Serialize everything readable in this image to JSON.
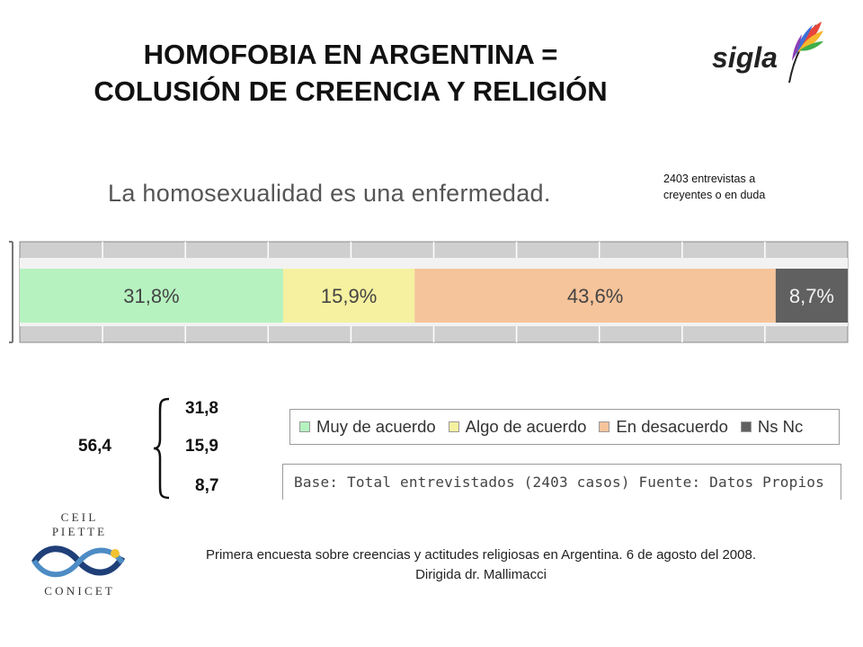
{
  "slide": {
    "title_line1": "HOMOFOBIA EN ARGENTINA =",
    "title_line2": "COLUSIÓN DE CREENCIA Y RELIGIÓN",
    "sigla_logo": "sigla",
    "note_line1": "2403 entrevistas a",
    "note_line2": "creyentes o en duda",
    "footer_line1": "Primera encuesta sobre creencias y actitudes religiosas en Argentina. 6 de agosto del 2008.",
    "footer_line2": "Dirigida dr. Mallimacci",
    "ceil_logo": {
      "line1": "C E I L",
      "line2": "P I E T T E",
      "line3": "C O N I C E T"
    }
  },
  "summary": {
    "sum_label": "56,4",
    "items": [
      "31,8",
      "15,9",
      "8,7"
    ]
  },
  "chart_data": {
    "type": "bar",
    "orientation": "horizontal-stacked-100",
    "title": "La homosexualidad es una enfermedad.",
    "categories": [
      "La homosexualidad es una enfermedad."
    ],
    "series": [
      {
        "name": "Muy de acuerdo",
        "values": [
          31.8
        ],
        "label": "31,8%",
        "color": "#b6f2c0"
      },
      {
        "name": "Algo de acuerdo",
        "values": [
          15.9
        ],
        "label": "15,9%",
        "color": "#f5f1a0"
      },
      {
        "name": "En desacuerdo",
        "values": [
          43.6
        ],
        "label": "43,6%",
        "color": "#f6c49b"
      },
      {
        "name": "Ns Nc",
        "values": [
          8.7
        ],
        "label": "8,7%",
        "color": "#606060"
      }
    ],
    "xlim": [
      0,
      100
    ],
    "grid": true,
    "legend": "bottom",
    "base": "Base: Total entrevistados (2403 casos) Fuente: Datos Propios"
  }
}
